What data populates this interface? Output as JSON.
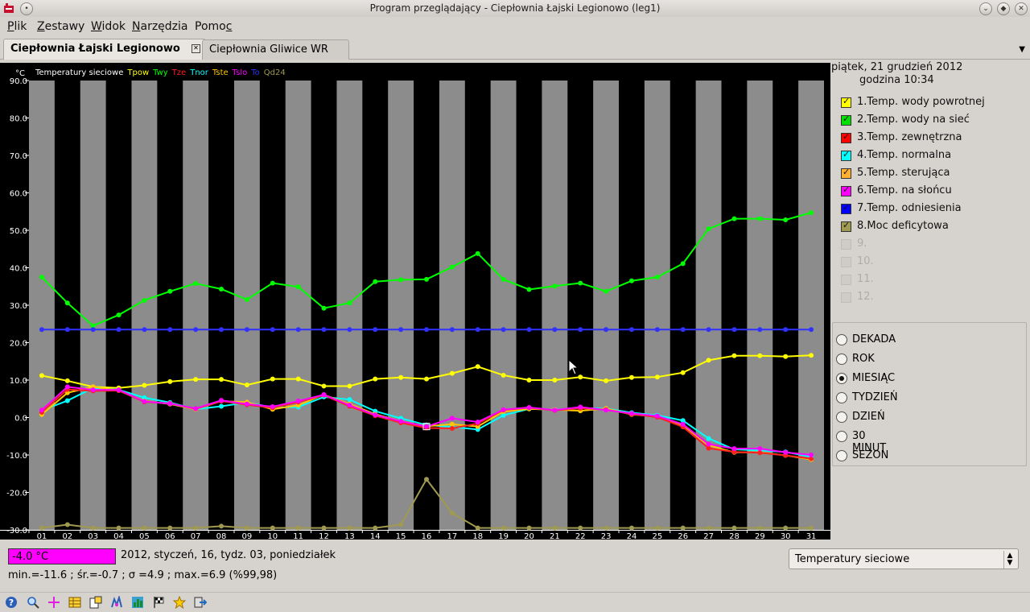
{
  "window": {
    "title": "Program przeglądający - Ciepłownia Łajski Legionowo (leg1)"
  },
  "menu": [
    {
      "pre": "",
      "u": "P",
      "post": "lik"
    },
    {
      "pre": "",
      "u": "Z",
      "post": "estawy"
    },
    {
      "pre": "",
      "u": "W",
      "post": "idok"
    },
    {
      "pre": "",
      "u": "N",
      "post": "arzędzia"
    },
    {
      "pre": "Pomo",
      "u": "c",
      "post": ""
    }
  ],
  "tabs": [
    {
      "label": "Ciepłownia Łajski Legionowo",
      "active": true
    },
    {
      "label": "Ciepłownia Gliwice WR",
      "active": false
    }
  ],
  "chart_data": {
    "type": "line",
    "unit_label": "°C",
    "header_title": "Temperatury sieciowe",
    "header_series": [
      {
        "label": "Tpow",
        "color": "#ffff00"
      },
      {
        "label": "Twy",
        "color": "#00ff00"
      },
      {
        "label": "Tze",
        "color": "#ff2020"
      },
      {
        "label": "Tnor",
        "color": "#00ffff"
      },
      {
        "label": "Tste",
        "color": "#ffc800"
      },
      {
        "label": "Tslo",
        "color": "#ff00ff"
      },
      {
        "label": "To",
        "color": "#3030ff"
      },
      {
        "label": "Qd24",
        "color": "#a09a50"
      }
    ],
    "ylim": [
      -30,
      90
    ],
    "yticks": [
      "90.0",
      "80.0",
      "70.0",
      "60.0",
      "50.0",
      "40.0",
      "30.0",
      "20.0",
      "10.0",
      "0.0",
      "-10.0",
      "-20.0",
      "-30.0"
    ],
    "categories": [
      "01",
      "02",
      "03",
      "04",
      "05",
      "06",
      "07",
      "08",
      "09",
      "10",
      "11",
      "12",
      "13",
      "14",
      "15",
      "16",
      "17",
      "18",
      "19",
      "20",
      "21",
      "22",
      "23",
      "24",
      "25",
      "26",
      "27",
      "28",
      "29",
      "30",
      "31"
    ],
    "series": [
      {
        "name": "Twy",
        "color": "#00ff00",
        "values": [
          37.5,
          30.6,
          24.5,
          27.4,
          31.3,
          33.7,
          35.8,
          34.3,
          31.5,
          35.9,
          34.9,
          29.2,
          30.6,
          36.3,
          36.8,
          36.9,
          40.2,
          43.8,
          36.9,
          34.2,
          35.1,
          35.9,
          33.7,
          36.5,
          37.5,
          41.1,
          50.4,
          53.1,
          53.1,
          52.8,
          54.7
        ]
      },
      {
        "name": "To",
        "color": "#3030ff",
        "values": [
          23.5,
          23.5,
          23.5,
          23.5,
          23.5,
          23.5,
          23.5,
          23.5,
          23.5,
          23.5,
          23.5,
          23.5,
          23.5,
          23.5,
          23.5,
          23.5,
          23.5,
          23.5,
          23.5,
          23.5,
          23.5,
          23.5,
          23.5,
          23.5,
          23.5,
          23.5,
          23.5,
          23.5,
          23.5,
          23.5,
          23.5
        ]
      },
      {
        "name": "Tpow",
        "color": "#ffff00",
        "values": [
          11.2,
          9.8,
          8.2,
          7.9,
          8.6,
          9.6,
          10.2,
          10.2,
          8.7,
          10.3,
          10.3,
          8.4,
          8.4,
          10.3,
          10.7,
          10.3,
          11.8,
          13.6,
          11.3,
          10.0,
          10.0,
          10.8,
          9.8,
          10.7,
          10.8,
          12.0,
          15.3,
          16.5,
          16.5,
          16.3,
          16.6
        ]
      },
      {
        "name": "Tnor",
        "color": "#00ffff",
        "values": [
          1.9,
          4.5,
          7.9,
          7.4,
          5.3,
          4.0,
          2.2,
          3.0,
          4.0,
          2.7,
          2.8,
          5.5,
          4.8,
          1.7,
          -0.2,
          -2.0,
          -2.5,
          -3.2,
          0.6,
          2.3,
          2.1,
          2.5,
          2.4,
          1.3,
          0.6,
          -0.8,
          -5.6,
          -8.5,
          -8.8,
          -9.2,
          -10.5
        ]
      },
      {
        "name": "Tste",
        "color": "#ffc800",
        "values": [
          0.8,
          6.6,
          8.2,
          7.2,
          4.4,
          3.6,
          2.2,
          4.4,
          4.1,
          2.2,
          3.3,
          6.1,
          3.6,
          0.9,
          -1.0,
          -2.3,
          -1.8,
          -2.4,
          1.6,
          2.3,
          2.1,
          1.8,
          2.4,
          0.8,
          0.3,
          -2.1,
          -7.4,
          -9.3,
          -9.3,
          -10.1,
          -11.2
        ]
      },
      {
        "name": "Tze",
        "color": "#ff2020",
        "values": [
          1.4,
          7.5,
          7.1,
          7.2,
          4.2,
          3.8,
          2.3,
          4.4,
          3.4,
          2.6,
          4.1,
          6.0,
          3.0,
          0.5,
          -1.4,
          -2.8,
          -2.9,
          -1.6,
          2.0,
          2.6,
          1.9,
          2.5,
          2.1,
          0.9,
          0.1,
          -2.5,
          -8.2,
          -9.2,
          -9.4,
          -10.1,
          -11.0
        ]
      },
      {
        "name": "Tslo",
        "color": "#ff00ff",
        "values": [
          2.0,
          8.2,
          7.4,
          7.4,
          4.3,
          3.7,
          2.4,
          4.6,
          3.6,
          2.9,
          4.4,
          6.1,
          3.3,
          0.7,
          -1.0,
          -2.4,
          -0.2,
          -1.2,
          2.1,
          2.7,
          2.0,
          2.8,
          2.0,
          1.1,
          0.4,
          -1.8,
          -7.1,
          -8.3,
          -8.3,
          -9.3,
          -10.0
        ]
      },
      {
        "name": "Qd24",
        "color": "#a09a50",
        "values": [
          -29.5,
          -28.6,
          -29.5,
          -29.5,
          -29.5,
          -29.5,
          -29.5,
          -29.0,
          -29.5,
          -29.5,
          -29.5,
          -29.5,
          -29.5,
          -29.5,
          -28.6,
          -16.5,
          -25.5,
          -29.5,
          -29.5,
          -29.5,
          -29.5,
          -29.5,
          -29.5,
          -29.5,
          -29.5,
          -29.5,
          -29.5,
          -29.5,
          -29.5,
          -29.5,
          -29.5
        ]
      }
    ]
  },
  "side": {
    "date_line1": "piątek, 21 grudzień 2012",
    "date_line2": "godzina 10:34",
    "legend": [
      {
        "label": "1.Temp. wody powrotnej",
        "color": "#ffff00",
        "checked": true,
        "enabled": true
      },
      {
        "label": "2.Temp. wody na sieć",
        "color": "#00e000",
        "checked": true,
        "enabled": true
      },
      {
        "label": "3.Temp. zewnętrzna",
        "color": "#ff0000",
        "checked": true,
        "enabled": true
      },
      {
        "label": "4.Temp. normalna",
        "color": "#00ffff",
        "checked": true,
        "enabled": true
      },
      {
        "label": "5.Temp. sterująca",
        "color": "#ffb030",
        "checked": true,
        "enabled": true
      },
      {
        "label": "6.Temp. na słońcu",
        "color": "#ff00ff",
        "checked": true,
        "enabled": true
      },
      {
        "label": "7.Temp. odniesienia",
        "color": "#0000ff",
        "checked": true,
        "enabled": true
      },
      {
        "label": "8.Moc deficytowa",
        "color": "#a09a50",
        "checked": true,
        "enabled": true
      },
      {
        "label": "9.",
        "color": "#cfcbc6",
        "checked": false,
        "enabled": false
      },
      {
        "label": "10.",
        "color": "#cfcbc6",
        "checked": false,
        "enabled": false
      },
      {
        "label": "11.",
        "color": "#cfcbc6",
        "checked": false,
        "enabled": false
      },
      {
        "label": "12.",
        "color": "#cfcbc6",
        "checked": false,
        "enabled": false
      }
    ],
    "periods": [
      {
        "label": "DEKADA",
        "selected": false
      },
      {
        "label": "ROK",
        "selected": false
      },
      {
        "label": "MIESIĄC",
        "selected": true
      },
      {
        "label": "TYDZIEŃ",
        "selected": false
      },
      {
        "label": "DZIEŃ",
        "selected": false
      },
      {
        "label": "30 MINUT",
        "selected": false
      },
      {
        "label": "SEZON",
        "selected": false
      }
    ]
  },
  "status": {
    "value": "-4.0 °C",
    "value_color": "#ff00ff",
    "date": "2012, styczeń, 16, tydz. 03, poniedziałek",
    "stats": "min.=-11.6 ; śr.=-0.7 ; σ =4.9 ; max.=6.9  (%99,98)"
  },
  "series_select": {
    "value": "Temperatury sieciowe"
  },
  "toolbar": [
    "help-icon",
    "zoom-icon",
    "crosshair-icon",
    "table-icon",
    "export-icon",
    "statistics-icon",
    "chart-icon",
    "flag-icon",
    "star-icon",
    "exit-icon"
  ]
}
